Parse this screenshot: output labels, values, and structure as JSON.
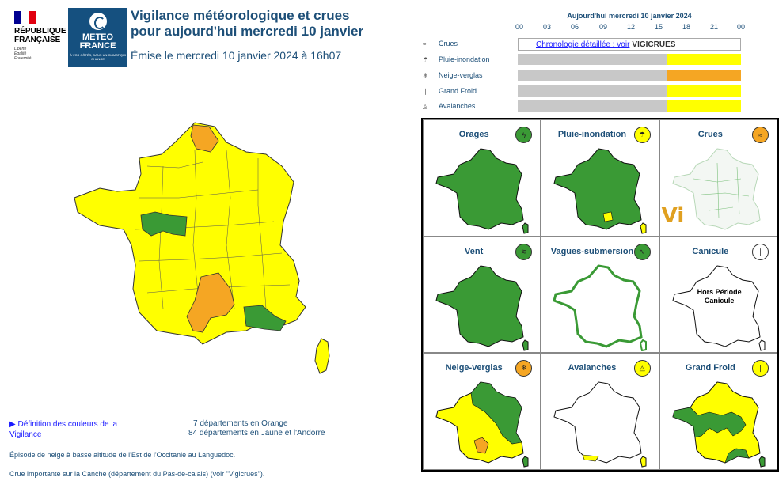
{
  "header": {
    "rf_name_line1": "RÉPUBLIQUE",
    "rf_name_line2": "FRANÇAISE",
    "rf_motto_1": "Liberté",
    "rf_motto_2": "Égalité",
    "rf_motto_3": "Fraternité",
    "mf_line1": "METEO",
    "mf_line2": "FRANCE",
    "mf_sub": "À VOS CÔTÉS, DANS UN CLIMAT QUI CHANGE",
    "title_line1": "Vigilance météorologique et crues",
    "title_line2": "pour aujourd'hui mercredi 10 janvier",
    "emise": "Émise le mercredi 10 janvier 2024 à 16h07"
  },
  "timeline": {
    "heading": "Aujourd'hui mercredi 10 janvier 2024",
    "hours": [
      "00",
      "03",
      "06",
      "09",
      "12",
      "15",
      "18",
      "21",
      "00"
    ],
    "crues_label": "Crues",
    "crues_link": "Chronologie détaillée : voir",
    "crues_brand": "VIGICRUES",
    "rows": [
      {
        "label": "Pluie-inondation",
        "color": "#ffff00",
        "icon": "rain-icon"
      },
      {
        "label": "Neige-verglas",
        "color": "#f5a623",
        "icon": "snow-icon"
      },
      {
        "label": "Grand Froid",
        "color": "#ffff00",
        "icon": "thermometer-icon"
      },
      {
        "label": "Avalanches",
        "color": "#ffff00",
        "icon": "avalanche-icon"
      }
    ]
  },
  "maps": [
    {
      "title": "Orages",
      "badge_color": "#3a9a35",
      "icon": "storm-icon"
    },
    {
      "title": "Pluie-inondation",
      "badge_color": "#ffff00",
      "icon": "rain-icon"
    },
    {
      "title": "Crues",
      "badge_color": "#f5a623",
      "icon": "flood-icon"
    },
    {
      "title": "Vent",
      "badge_color": "#3a9a35",
      "icon": "wind-icon"
    },
    {
      "title": "Vagues-submersion",
      "badge_color": "#3a9a35",
      "icon": "waves-icon"
    },
    {
      "title": "Canicule",
      "badge_color": "#ffffff",
      "icon": "thermometer-icon"
    },
    {
      "title": "Neige-verglas",
      "badge_color": "#f5a623",
      "icon": "snow-icon"
    },
    {
      "title": "Avalanches",
      "badge_color": "#ffff00",
      "icon": "avalanche-icon"
    },
    {
      "title": "Grand Froid",
      "badge_color": "#ffff00",
      "icon": "thermometer-icon"
    }
  ],
  "canicule_text_1": "Hors Période",
  "canicule_text_2": "Canicule",
  "crues_vi": "Vi",
  "colors": {
    "green": "#3a9a35",
    "yellow": "#ffff00",
    "orange": "#f5a623",
    "grey": "#c8c8c8",
    "title_blue": "#1d4f78"
  },
  "footer": {
    "definition_link": "▶ Définition des couleurs de la Vigilance",
    "count_orange": "7 départements en Orange",
    "count_yellow": "84 départements en Jaune et l'Andorre",
    "episode": "Épisode de neige à basse altitude de l'Est de l'Occitanie au Languedoc.",
    "crue_note": "Crue importante sur la Canche (département du Pas-de-calais) (voir \"Vigicrues\")."
  }
}
